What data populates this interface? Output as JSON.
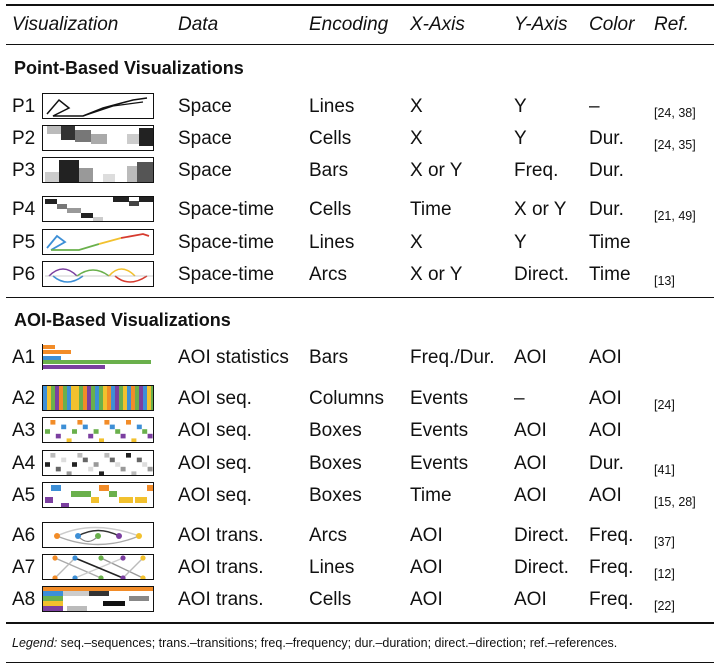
{
  "columns": {
    "visualization": "Visualization",
    "data": "Data",
    "encoding": "Encoding",
    "x_axis": "X-Axis",
    "y_axis": "Y-Axis",
    "color": "Color",
    "ref": "Ref."
  },
  "sections": {
    "point": "Point-Based Visualizations",
    "aoi": "AOI-Based Visualizations"
  },
  "rows": [
    {
      "id": "P1",
      "data": "Space",
      "encoding": "Lines",
      "x": "X",
      "y": "Y",
      "color": "–",
      "ref": "[24, 38]"
    },
    {
      "id": "P2",
      "data": "Space",
      "encoding": "Cells",
      "x": "X",
      "y": "Y",
      "color": "Dur.",
      "ref": "[24, 35]"
    },
    {
      "id": "P3",
      "data": "Space",
      "encoding": "Bars",
      "x": "X or Y",
      "y": "Freq.",
      "color": "Dur.",
      "ref": ""
    },
    {
      "id": "P4",
      "data": "Space-time",
      "encoding": "Cells",
      "x": "Time",
      "y": "X or Y",
      "color": "Dur.",
      "ref": "[21, 49]"
    },
    {
      "id": "P5",
      "data": "Space-time",
      "encoding": "Lines",
      "x": "X",
      "y": "Y",
      "color": "Time",
      "ref": ""
    },
    {
      "id": "P6",
      "data": "Space-time",
      "encoding": "Arcs",
      "x": "X or Y",
      "y": "Direct.",
      "color": "Time",
      "ref": "[13]"
    },
    {
      "id": "A1",
      "data": "AOI statistics",
      "encoding": "Bars",
      "x": "Freq./Dur.",
      "y": "AOI",
      "color": "AOI",
      "ref": ""
    },
    {
      "id": "A2",
      "data": "AOI seq.",
      "encoding": "Columns",
      "x": "Events",
      "y": "–",
      "color": "AOI",
      "ref": "[24]"
    },
    {
      "id": "A3",
      "data": "AOI seq.",
      "encoding": "Boxes",
      "x": "Events",
      "y": "AOI",
      "color": "AOI",
      "ref": ""
    },
    {
      "id": "A4",
      "data": "AOI seq.",
      "encoding": "Boxes",
      "x": "Events",
      "y": "AOI",
      "color": "Dur.",
      "ref": "[41]"
    },
    {
      "id": "A5",
      "data": "AOI seq.",
      "encoding": "Boxes",
      "x": "Time",
      "y": "AOI",
      "color": "AOI",
      "ref": "[15, 28]"
    },
    {
      "id": "A6",
      "data": "AOI trans.",
      "encoding": "Arcs",
      "x": "AOI",
      "y": "Direct.",
      "color": "Freq.",
      "ref": "[37]"
    },
    {
      "id": "A7",
      "data": "AOI trans.",
      "encoding": "Lines",
      "x": "AOI",
      "y": "Direct.",
      "color": "Freq.",
      "ref": "[12]"
    },
    {
      "id": "A8",
      "data": "AOI trans.",
      "encoding": "Cells",
      "x": "AOI",
      "y": "AOI",
      "color": "Freq.",
      "ref": "[22]"
    }
  ],
  "legend": {
    "label": "Legend:",
    "text": "seq.–sequences; trans.–transitions; freq.–frequency; dur.–duration; direct.–direction; ref.–references."
  },
  "colors": {
    "orange": "#f28c28",
    "green": "#6ab04c",
    "purple": "#7b3fa0",
    "blue": "#3d8fd6",
    "yellow": "#f2c12e",
    "red": "#d63b2f",
    "gray": "#888888"
  }
}
